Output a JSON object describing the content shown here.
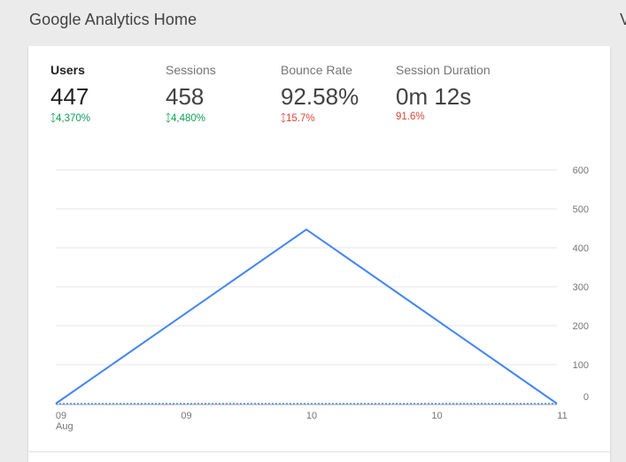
{
  "header": {
    "title": "Google Analytics Home",
    "edge_glyph": "V"
  },
  "metrics": [
    {
      "label": "Users",
      "value": "447",
      "change": "4,370%",
      "direction": "up",
      "sentiment": "good",
      "active": true
    },
    {
      "label": "Sessions",
      "value": "458",
      "change": "4,480%",
      "direction": "up",
      "sentiment": "good",
      "active": false
    },
    {
      "label": "Bounce Rate",
      "value": "92.58%",
      "change": "15.7%",
      "direction": "up",
      "sentiment": "bad",
      "active": false
    },
    {
      "label": "Session Duration",
      "value": "0m 12s",
      "change": "91.6%",
      "direction": "down",
      "sentiment": "bad",
      "active": false
    }
  ],
  "colors": {
    "accent": "#4285f4",
    "positive": "#0f9d58",
    "negative": "#db4437"
  },
  "chart_data": {
    "type": "line",
    "x": [
      "09 Aug",
      "10 Aug",
      "11 Aug"
    ],
    "x_tick_labels": [
      "09",
      "09",
      "10",
      "10",
      "11"
    ],
    "x_sub_label": "Aug",
    "series": [
      {
        "name": "",
        "style": "solid",
        "values": [
          0,
          447,
          0
        ]
      },
      {
        "name": "",
        "style": "dotted",
        "values": [
          0,
          0,
          0
        ]
      }
    ],
    "y_ticks": [
      0,
      100,
      200,
      300,
      400,
      500,
      600
    ],
    "ylim": [
      0,
      600
    ],
    "y_axis_side": "right",
    "grid": true
  }
}
